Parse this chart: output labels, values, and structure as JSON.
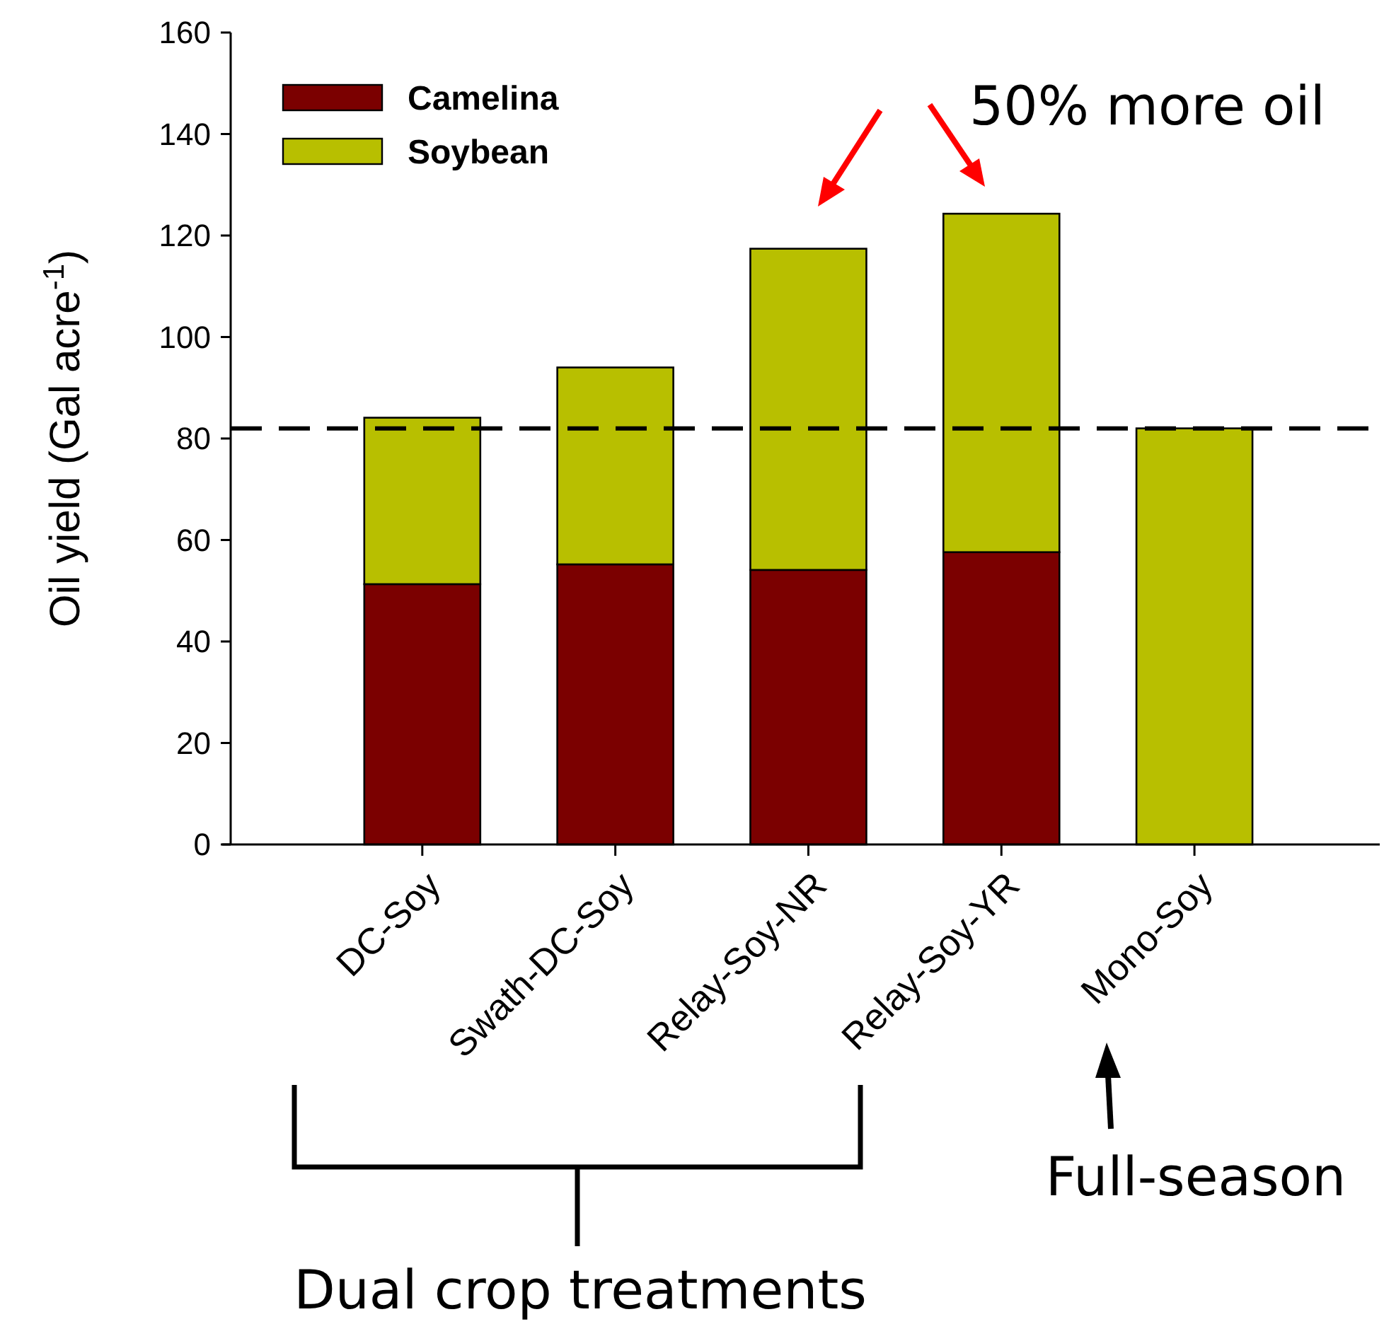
{
  "chart_data": {
    "type": "bar",
    "stacked": true,
    "ylabel": "Oil yield (Gal acre$^{-1}$)",
    "categories": [
      "DC-Soy",
      "Swath-DC-Soy",
      "Relay-Soy-NR",
      "Relay-Soy-YR",
      "Mono-Soy"
    ],
    "series": [
      {
        "name": "Camelina",
        "color": "#7b0000",
        "values": [
          51.3,
          55.2,
          54.1,
          57.6,
          0
        ]
      },
      {
        "name": "Soybean",
        "color": "#b8bf00",
        "values": [
          32.8,
          38.8,
          63.3,
          66.7,
          82
        ]
      }
    ],
    "ylim": [
      0,
      160
    ],
    "yticks": [
      0,
      20,
      40,
      60,
      80,
      100,
      120,
      140,
      160
    ],
    "ref_lines": [
      {
        "axis": "y",
        "value": 82,
        "line_style": "dashed",
        "color": "#000000"
      }
    ],
    "legend": "top left",
    "annotations": [
      "50% more oil",
      "Full-season",
      "Dual crop treatments"
    ]
  }
}
